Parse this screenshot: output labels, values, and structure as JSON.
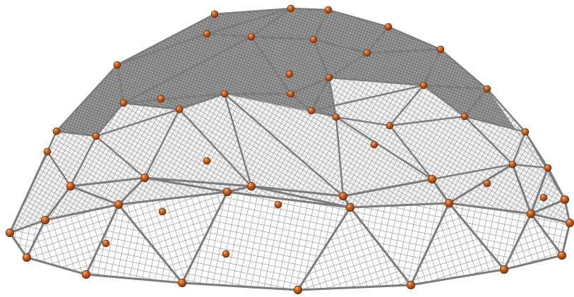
{
  "scene": {
    "subject": "geodesic-dome-wireframe",
    "colors": {
      "background": "#ffffff",
      "mesh": "#8a8a8a",
      "mesh_dark": "#5e5e5e",
      "strut": "#7b7b7b",
      "node": "#b8581f",
      "node_highlight": "#f3a16b"
    },
    "node_count": 70
  }
}
